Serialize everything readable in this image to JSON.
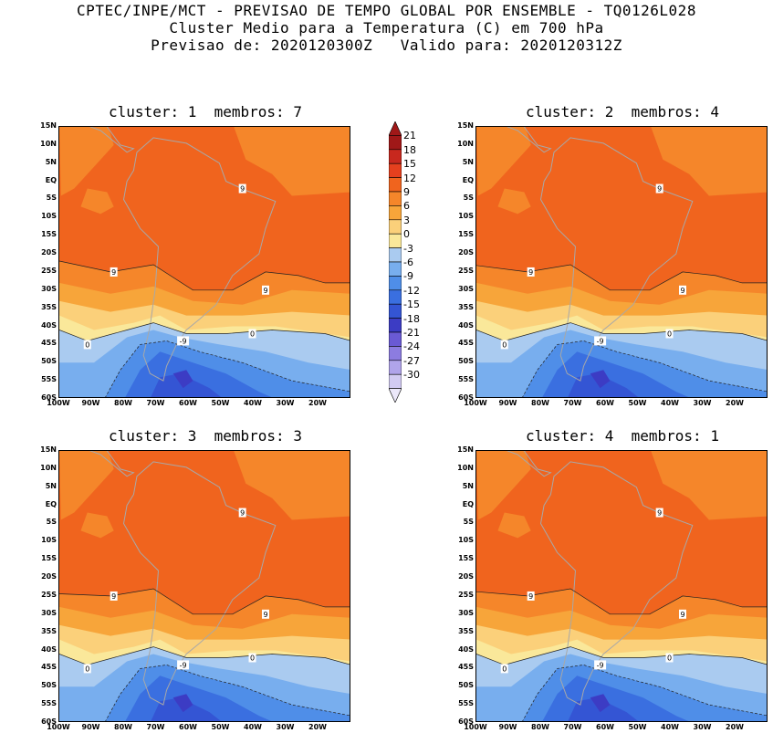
{
  "header": {
    "line1": "CPTEC/INPE/MCT - PREVISAO DE TEMPO GLOBAL POR ENSEMBLE - TQ0126L028",
    "line2": "Cluster Medio para a Temperatura (C) em 700 hPa",
    "line3": "Previsao de: 2020120300Z   Valido para: 2020120312Z"
  },
  "panels": [
    {
      "title": "cluster: 1  membros: 7"
    },
    {
      "title": "cluster: 2  membros: 4"
    },
    {
      "title": "cluster: 3  membros: 3"
    },
    {
      "title": "cluster: 4  membros: 1"
    }
  ],
  "lat_labels": [
    "15N",
    "10N",
    "5N",
    "EQ",
    "5S",
    "10S",
    "15S",
    "20S",
    "25S",
    "30S",
    "35S",
    "40S",
    "45S",
    "50S",
    "55S",
    "60S"
  ],
  "lon_labels": [
    "100W",
    "90W",
    "80W",
    "70W",
    "60W",
    "50W",
    "40W",
    "30W",
    "20W"
  ],
  "colorbar": {
    "labels": [
      "21",
      "18",
      "15",
      "12",
      "9",
      "6",
      "3",
      "0",
      "-3",
      "-6",
      "-9",
      "-12",
      "-15",
      "-18",
      "-21",
      "-24",
      "-27",
      "-30"
    ],
    "colors": [
      "#a01818",
      "#c8281e",
      "#e5401e",
      "#f0641e",
      "#f5862a",
      "#f7a53a",
      "#fbd07a",
      "#fae89a",
      "#aacbf0",
      "#78aeee",
      "#4f8ee8",
      "#3a6fe0",
      "#3455d4",
      "#3c3cc4",
      "#6a5ad4",
      "#8c7ce0",
      "#b0a4ea",
      "#d2cbf2"
    ]
  },
  "contour_labels": {
    "warm": "9",
    "zero": "0",
    "cold": "-9"
  }
}
